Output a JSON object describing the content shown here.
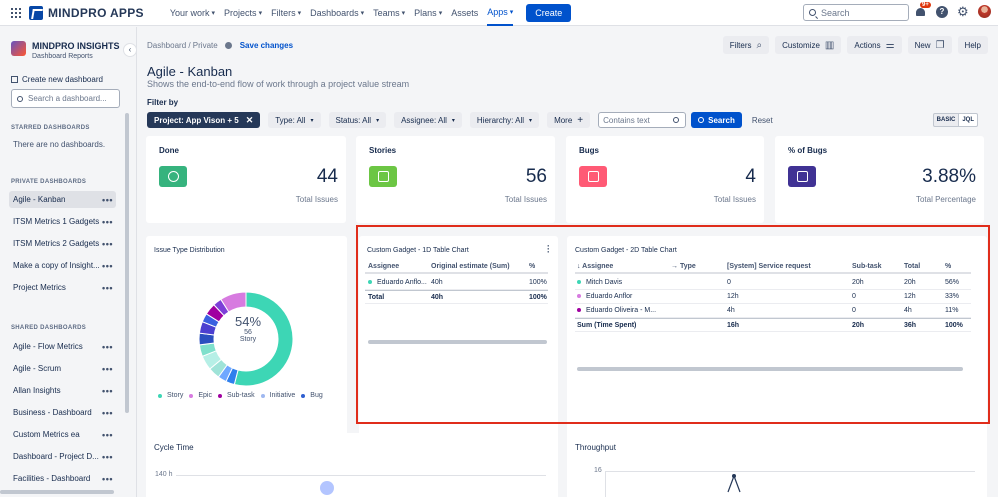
{
  "topbar": {
    "logo": "MINDPRO APPS",
    "nav": [
      {
        "label": "Your work",
        "chev": true
      },
      {
        "label": "Projects",
        "chev": true
      },
      {
        "label": "Filters",
        "chev": true
      },
      {
        "label": "Dashboards",
        "chev": true
      },
      {
        "label": "Teams",
        "chev": true
      },
      {
        "label": "Plans",
        "chev": true
      },
      {
        "label": "Assets",
        "chev": false
      },
      {
        "label": "Apps",
        "chev": true
      }
    ],
    "create": "Create",
    "search_placeholder": "Search",
    "notif_badge": "9+"
  },
  "sidebar": {
    "title": "MINDPRO INSIGHTS",
    "subtitle": "Dashboard Reports",
    "new_dashboard": "Create new dashboard",
    "search_placeholder": "Search a dashboard...",
    "starred_label": "STARRED DASHBOARDS",
    "starred_empty": "There are no dashboards.",
    "private_label": "PRIVATE DASHBOARDS",
    "private": [
      "Agile - Kanban",
      "ITSM Metrics 1 Gadgets",
      "ITSM Metrics 2 Gadgets",
      "Make a copy of Insight...",
      "Project Metrics"
    ],
    "shared_label": "SHARED DASHBOARDS",
    "shared": [
      "Agile - Flow Metrics",
      "Agile - Scrum",
      "Allan Insights",
      "Business - Dashboard",
      "Custom Metrics ea",
      "Dashboard - Project D...",
      "Facilities - Dashboard"
    ]
  },
  "header": {
    "crumb": "Dashboard / Private",
    "save": "Save changes",
    "buttons": [
      {
        "label": "Filters",
        "icon": "magnifier-icon"
      },
      {
        "label": "Customize",
        "icon": "bar-chart-icon"
      },
      {
        "label": "Actions",
        "icon": "sliders-icon"
      },
      {
        "label": "New",
        "icon": "new-window-icon"
      },
      {
        "label": "Help",
        "icon": ""
      }
    ],
    "title": "Agile - Kanban",
    "subtitle": "Shows the end-to-end flow of work through a project value stream"
  },
  "filters": {
    "label": "Filter by",
    "project": "Project: App Vison + 5",
    "chips": [
      "Type: All",
      "Status: All",
      "Assignee: All",
      "Hierarchy: All"
    ],
    "more": "More",
    "contains_placeholder": "Contains text",
    "search": "Search",
    "reset": "Reset",
    "basic": "BASIC",
    "jql": "JQL"
  },
  "stats": [
    {
      "label": "Done",
      "value": "44",
      "sub": "Total Issues",
      "color": "#36b37e",
      "icon": "check-circle-icon"
    },
    {
      "label": "Stories",
      "value": "56",
      "sub": "Total Issues",
      "color": "#6cc644",
      "icon": "story-icon"
    },
    {
      "label": "Bugs",
      "value": "4",
      "sub": "Total Issues",
      "color": "#ff5a75",
      "icon": "bug-icon"
    },
    {
      "label": "% of Bugs",
      "value": "3.88%",
      "sub": "Total Percentage",
      "color": "#403294",
      "icon": "bar-chart-icon"
    }
  ],
  "issue_dist": {
    "title": "Issue Type Distribution",
    "center_pct": "54%",
    "center_count": "56",
    "center_label": "Story",
    "legend": [
      {
        "name": "Story",
        "color": "#3dd6b5"
      },
      {
        "name": "Epic",
        "color": "#d77be0"
      },
      {
        "name": "Sub-task",
        "color": "#a000a0"
      },
      {
        "name": "Initiative",
        "color": "#9fb8f0"
      },
      {
        "name": "Bug",
        "color": "#2f5fd0"
      }
    ]
  },
  "chart_data": {
    "type": "pie",
    "donut": true,
    "title": "Issue Type Distribution",
    "segments": [
      {
        "label": "Story",
        "value": 54,
        "color": "#3dd6b5"
      },
      {
        "label": "",
        "value": 3,
        "color": "#2f80ed"
      },
      {
        "label": "",
        "value": 3,
        "color": "#6fa8ff"
      },
      {
        "label": "",
        "value": 4,
        "color": "#9fe3d8"
      },
      {
        "label": "",
        "value": 5,
        "color": "#b6efe6"
      },
      {
        "label": "",
        "value": 4,
        "color": "#7fe0cc"
      },
      {
        "label": "",
        "value": 4,
        "color": "#2a4fbf"
      },
      {
        "label": "",
        "value": 4,
        "color": "#4b3fd0"
      },
      {
        "label": "Bug",
        "value": 3,
        "color": "#3a5fe0"
      },
      {
        "label": "Sub-task",
        "value": 4,
        "color": "#a000a0"
      },
      {
        "label": "",
        "value": 3,
        "color": "#7d3fd8"
      },
      {
        "label": "Epic",
        "value": 9,
        "color": "#d77be0"
      }
    ]
  },
  "table1d": {
    "title": "Custom Gadget - 1D Table Chart",
    "headers": [
      "Assignee",
      "Original estimate (Sum)",
      "%"
    ],
    "rows": [
      {
        "name": "Eduardo Anflo...",
        "est": "40h",
        "pct": "100%",
        "color": "#3dd6b5"
      }
    ],
    "total": {
      "name": "Total",
      "est": "40h",
      "pct": "100%"
    }
  },
  "table2d": {
    "title": "Custom Gadget - 2D Table Chart",
    "headers": [
      "↓ Assignee",
      "→ Type",
      "[System] Service request",
      "Sub-task",
      "Total",
      "%"
    ],
    "rows": [
      {
        "name": "Mitch Davis",
        "sr": "0",
        "sub": "20h",
        "total": "20h",
        "pct": "56%",
        "color": "#3dd6b5"
      },
      {
        "name": "Eduardo Anflor",
        "sr": "12h",
        "sub": "0",
        "total": "12h",
        "pct": "33%",
        "color": "#d77be0"
      },
      {
        "name": "Eduardo Oliveira - M...",
        "sr": "4h",
        "sub": "0",
        "total": "4h",
        "pct": "11%",
        "color": "#a000a0"
      }
    ],
    "total": {
      "name": "Sum (Time Spent)",
      "sr": "16h",
      "sub": "20h",
      "total": "36h",
      "pct": "100%"
    }
  },
  "cycle": {
    "title": "Cycle Time",
    "ytick": "140 h"
  },
  "throughput": {
    "title": "Throughput",
    "ytick": "16"
  }
}
